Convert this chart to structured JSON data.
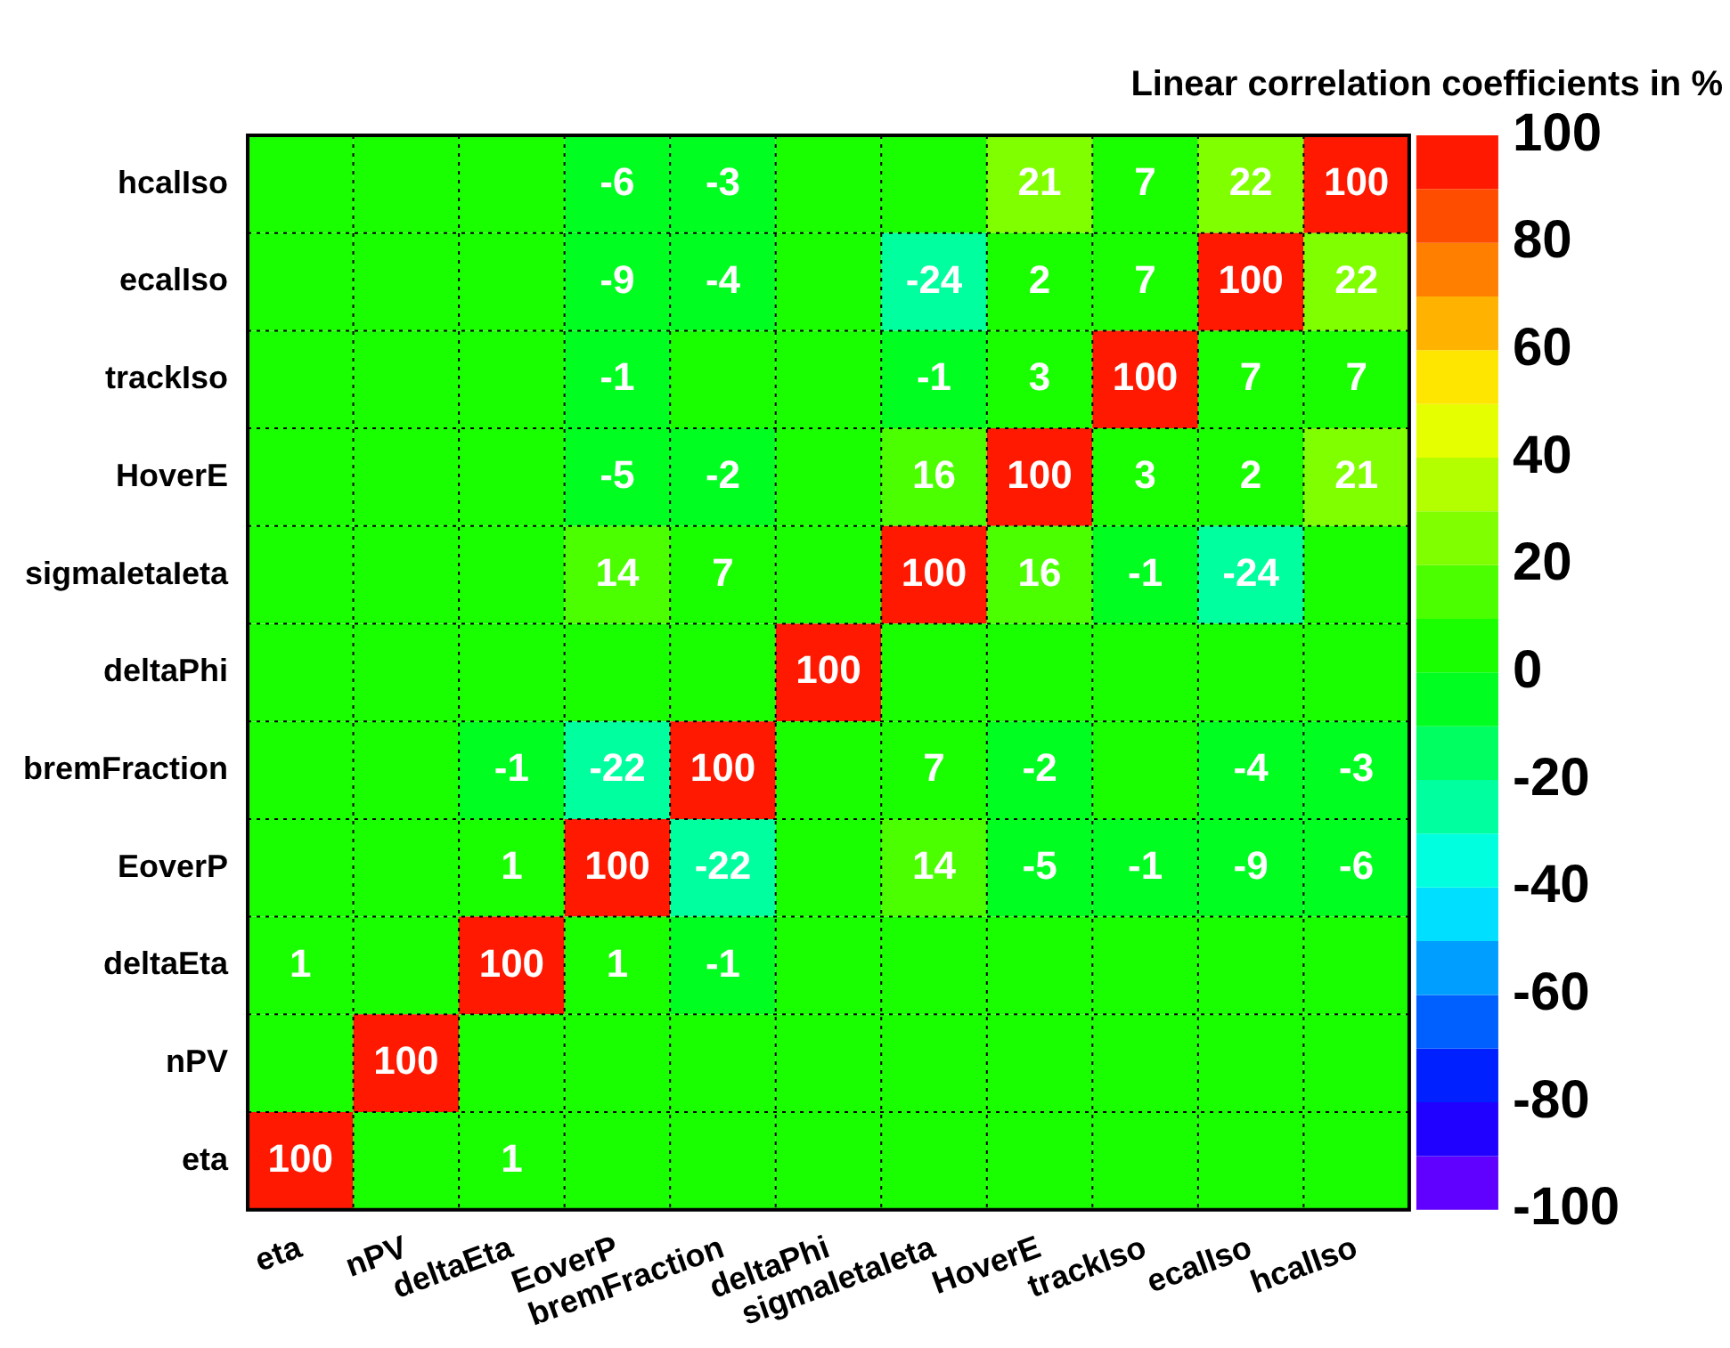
{
  "chart_data": {
    "type": "heatmap",
    "title": "Linear correlation coefficients in %",
    "categories": [
      "eta",
      "nPV",
      "deltaEta",
      "EoverP",
      "bremFraction",
      "deltaPhi",
      "sigmaIetaIeta",
      "HoverE",
      "trackIso",
      "ecalIso",
      "hcalIso"
    ],
    "y_categories": [
      "hcalIso",
      "ecalIso",
      "trackIso",
      "HoverE",
      "sigmaIetaIeta",
      "deltaPhi",
      "bremFraction",
      "EoverP",
      "deltaEta",
      "nPV",
      "eta"
    ],
    "cells": [
      [
        0,
        0,
        0,
        -6,
        -3,
        0,
        0,
        21,
        7,
        22,
        100
      ],
      [
        0,
        0,
        0,
        -9,
        -4,
        0,
        -24,
        2,
        7,
        100,
        22
      ],
      [
        0,
        0,
        0,
        -1,
        0,
        0,
        -1,
        3,
        100,
        7,
        7
      ],
      [
        0,
        0,
        0,
        -5,
        -2,
        0,
        16,
        100,
        3,
        2,
        21
      ],
      [
        0,
        0,
        0,
        14,
        7,
        0,
        100,
        16,
        -1,
        -24,
        0
      ],
      [
        0,
        0,
        0,
        0,
        0,
        100,
        0,
        0,
        0,
        0,
        0
      ],
      [
        0,
        0,
        -1,
        -22,
        100,
        0,
        7,
        -2,
        0,
        -4,
        -3
      ],
      [
        0,
        0,
        1,
        100,
        -22,
        0,
        14,
        -5,
        -1,
        -9,
        -6
      ],
      [
        1,
        0,
        100,
        1,
        -1,
        0,
        0,
        0,
        0,
        0,
        0
      ],
      [
        0,
        100,
        0,
        0,
        0,
        0,
        0,
        0,
        0,
        0,
        0
      ],
      [
        100,
        0,
        1,
        0,
        0,
        0,
        0,
        0,
        0,
        0,
        0
      ]
    ],
    "cell_labels": [
      [
        null,
        null,
        null,
        "-6",
        "-3",
        null,
        null,
        "21",
        "7",
        "22",
        "100"
      ],
      [
        null,
        null,
        null,
        "-9",
        "-4",
        null,
        "-24",
        "2",
        "7",
        "100",
        "22"
      ],
      [
        null,
        null,
        null,
        "-1",
        null,
        null,
        "-1",
        "3",
        "100",
        "7",
        "7"
      ],
      [
        null,
        null,
        null,
        "-5",
        "-2",
        null,
        "16",
        "100",
        "3",
        "2",
        "21"
      ],
      [
        null,
        null,
        null,
        "14",
        "7",
        null,
        "100",
        "16",
        "-1",
        "-24",
        null
      ],
      [
        null,
        null,
        null,
        null,
        null,
        "100",
        null,
        null,
        null,
        null,
        null
      ],
      [
        null,
        null,
        "-1",
        "-22",
        "100",
        null,
        "7",
        "-2",
        null,
        "-4",
        "-3"
      ],
      [
        null,
        null,
        "1",
        "100",
        "-22",
        null,
        "14",
        "-5",
        "-1",
        "-9",
        "-6"
      ],
      [
        "1",
        null,
        "100",
        "1",
        "-1",
        null,
        null,
        null,
        null,
        null,
        null
      ],
      [
        null,
        "100",
        null,
        null,
        null,
        null,
        null,
        null,
        null,
        null,
        null
      ],
      [
        "100",
        null,
        "1",
        null,
        null,
        null,
        null,
        null,
        null,
        null,
        null
      ]
    ],
    "clim": [
      -100,
      100
    ],
    "cticks": [
      -100,
      -80,
      -60,
      -40,
      -20,
      0,
      20,
      40,
      60,
      80,
      100
    ],
    "grid": true
  }
}
